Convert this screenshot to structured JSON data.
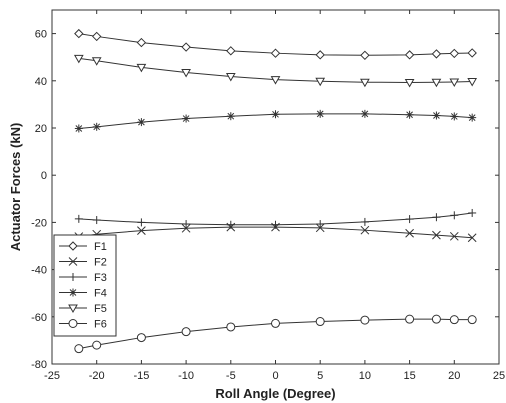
{
  "chart_data": {
    "type": "line",
    "title": "",
    "xlabel": "Roll Angle (Degree)",
    "ylabel": "Actuator Forces (kN)",
    "xlim": [
      -25,
      25
    ],
    "ylim": [
      -80,
      70
    ],
    "xticks": [
      -25,
      -20,
      -15,
      -10,
      -5,
      0,
      5,
      10,
      15,
      20,
      25
    ],
    "yticks": [
      -80,
      -60,
      -40,
      -20,
      0,
      20,
      40,
      60
    ],
    "grid": false,
    "legend_position": "bottom-left",
    "x": [
      -22,
      -20,
      -15,
      -10,
      -5,
      0,
      5,
      10,
      15,
      18,
      20,
      22
    ],
    "series": [
      {
        "name": "F1",
        "marker": "diamond",
        "values": [
          60.0,
          58.8,
          56.2,
          54.3,
          52.7,
          51.7,
          51.0,
          50.8,
          51.0,
          51.4,
          51.6,
          51.8
        ]
      },
      {
        "name": "F2",
        "marker": "x",
        "values": [
          -26.0,
          -25.0,
          -23.5,
          -22.5,
          -22.0,
          -22.0,
          -22.3,
          -23.3,
          -24.6,
          -25.4,
          -25.9,
          -26.5
        ]
      },
      {
        "name": "F3",
        "marker": "plus",
        "values": [
          -18.5,
          -19.0,
          -20.0,
          -20.7,
          -21.0,
          -21.0,
          -20.7,
          -19.8,
          -18.6,
          -17.8,
          -17.0,
          -16.0
        ]
      },
      {
        "name": "F4",
        "marker": "asterisk",
        "values": [
          19.8,
          20.5,
          22.5,
          24.0,
          25.0,
          25.8,
          26.0,
          26.0,
          25.6,
          25.3,
          24.9,
          24.4
        ]
      },
      {
        "name": "F5",
        "marker": "triangle",
        "values": [
          49.5,
          48.5,
          45.7,
          43.5,
          41.8,
          40.5,
          39.8,
          39.4,
          39.3,
          39.4,
          39.5,
          39.7
        ]
      },
      {
        "name": "F6",
        "marker": "circle",
        "values": [
          -73.5,
          -72.0,
          -68.8,
          -66.3,
          -64.3,
          -62.8,
          -62.0,
          -61.4,
          -61.0,
          -61.0,
          -61.2,
          -61.2
        ]
      }
    ],
    "colors": {
      "line": "#333333",
      "axis": "#333333",
      "background": "#ffffff"
    }
  }
}
